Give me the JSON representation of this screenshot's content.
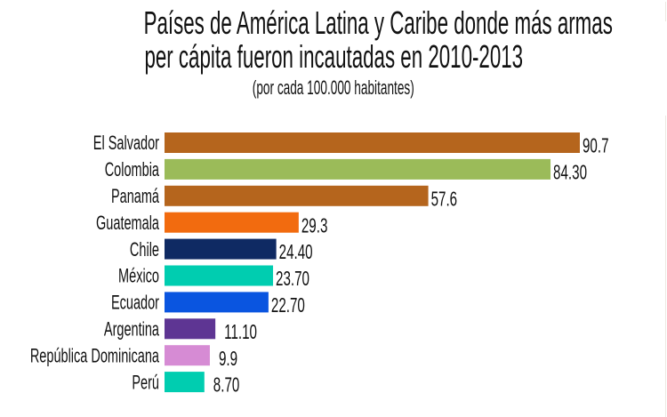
{
  "chart_data": {
    "type": "bar",
    "orientation": "horizontal",
    "title": "Países de América Latina y Caribe donde más armas per cápita fueron incautadas en 2010-2013",
    "title_lines": [
      "Países de América Latina y Caribe donde más armas",
      "per cápita fueron incautadas en 2010-2013"
    ],
    "subtitle": "(por cada 100.000 habitantes)",
    "xlabel": "",
    "ylabel": "",
    "xlim": [
      0,
      90.7
    ],
    "grid": false,
    "legend": "none",
    "categories": [
      "El Salvador",
      "Colombia",
      "Panamá",
      "Guatemala",
      "Chile",
      "México",
      "Ecuador",
      "Argentina",
      "República Dominicana",
      "Perú"
    ],
    "values": [
      90.7,
      84.3,
      57.6,
      29.3,
      24.4,
      23.7,
      22.7,
      11.1,
      9.9,
      8.7
    ],
    "value_labels": [
      "90.7",
      "84.30",
      "57.6",
      "29.3",
      "24.40",
      "23.70",
      "22.70",
      "11.10",
      "9.9",
      "8.70"
    ],
    "colors": [
      "#b5651d",
      "#9bbb59",
      "#b5651d",
      "#f26b0f",
      "#0f2a63",
      "#00cdb0",
      "#0a55e0",
      "#5e3593",
      "#d68bd4",
      "#00cdb0"
    ]
  }
}
